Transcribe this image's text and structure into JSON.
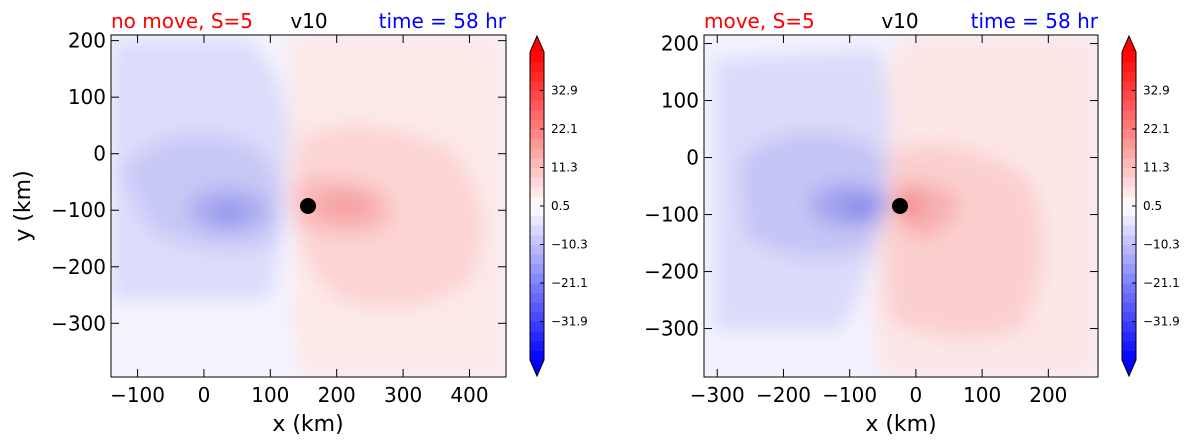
{
  "colors": {
    "title_case": "#ff0000",
    "title_var": "#000000",
    "title_time": "#0000ff",
    "colormap": [
      "#0000ff",
      "#ffffff",
      "#ff0000"
    ]
  },
  "colorbar": {
    "ticks": [
      "32.9",
      "22.1",
      "11.3",
      "0.5",
      "−10.3",
      "−21.1",
      "−31.9"
    ],
    "tick_values": [
      32.9,
      22.1,
      11.3,
      0.5,
      -10.3,
      -21.1,
      -31.9
    ],
    "range": [
      -42.7,
      43.7
    ],
    "extend": "both"
  },
  "chart_data": [
    {
      "type": "heatmap",
      "variable": "v10",
      "title_case": "no move, S=5",
      "title_var": "v10",
      "title_time": "time = 58 hr",
      "xlabel": "x (km)",
      "ylabel": "y (km)",
      "xlim": [
        -140,
        455
      ],
      "ylim": [
        -395,
        210
      ],
      "xticks": [
        -100,
        0,
        100,
        200,
        300,
        400
      ],
      "yticks": [
        200,
        100,
        0,
        -100,
        -200,
        -300
      ],
      "xtick_labels": [
        "−100",
        "0",
        "100",
        "200",
        "300",
        "400"
      ],
      "ytick_labels": [
        "200",
        "100",
        "0",
        "−100",
        "−200",
        "−300"
      ],
      "center": [
        155,
        -95
      ],
      "marker": [
        155,
        -95
      ]
    },
    {
      "type": "heatmap",
      "variable": "v10",
      "title_case": "move, S=5",
      "title_var": "v10",
      "title_time": "time = 58 hr",
      "xlabel": "x (km)",
      "ylabel": "",
      "xlim": [
        -320,
        275
      ],
      "ylim": [
        -385,
        215
      ],
      "xticks": [
        -300,
        -200,
        -100,
        0,
        100,
        200
      ],
      "yticks": [
        200,
        100,
        0,
        -100,
        -200,
        -300
      ],
      "xtick_labels": [
        "−300",
        "−200",
        "−100",
        "0",
        "100",
        "200"
      ],
      "ytick_labels": [
        "200",
        "100",
        "0",
        "−100",
        "−200",
        "−300"
      ],
      "center": [
        -25,
        -85
      ],
      "marker": [
        -25,
        -85
      ]
    }
  ]
}
